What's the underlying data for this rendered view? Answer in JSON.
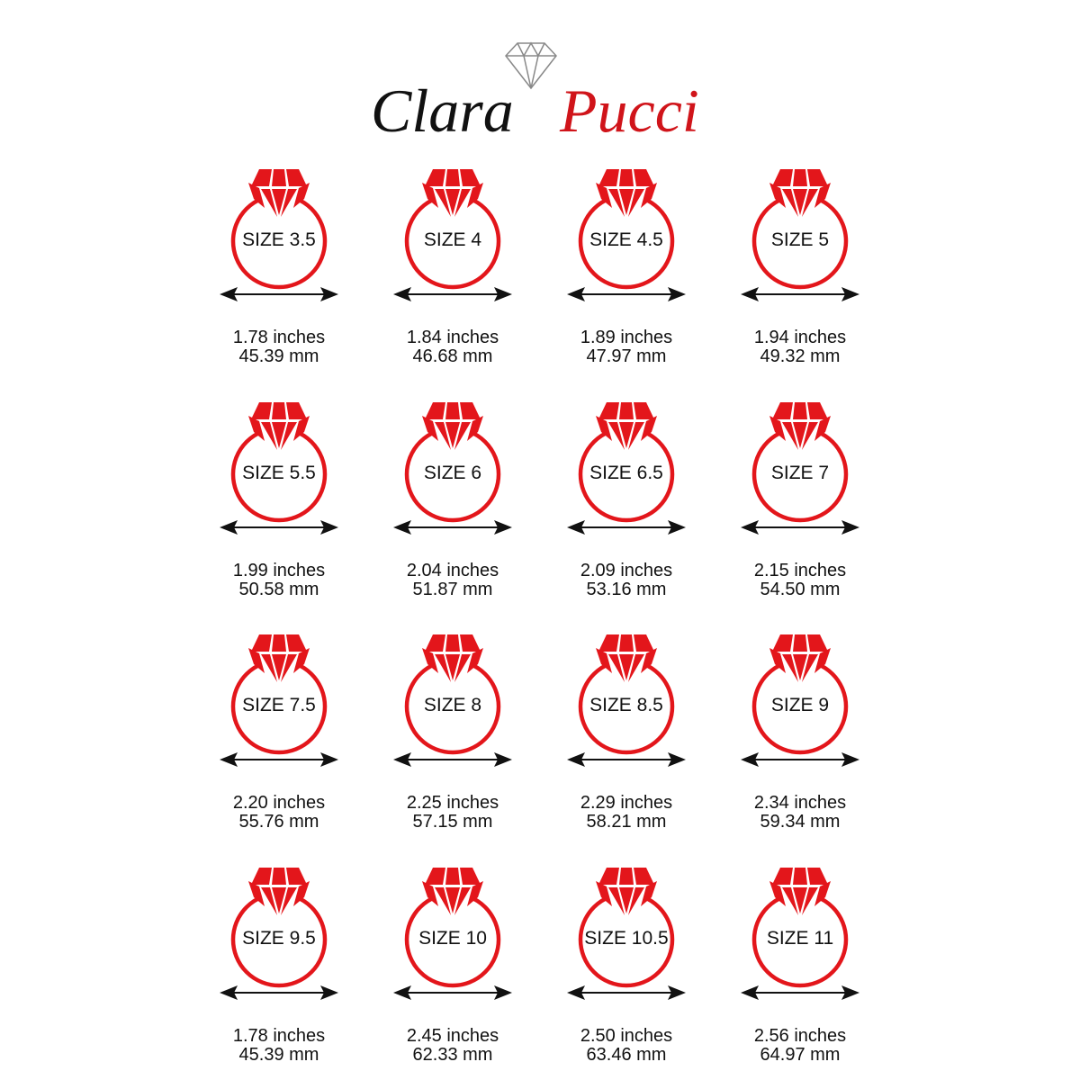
{
  "brand": {
    "first": "Clara",
    "second": "Pucci",
    "first_color": "#111111",
    "second_color": "#d0141a",
    "icon": "diamond-outline-icon"
  },
  "colors": {
    "ring": "#e3161b",
    "arrow": "#111111"
  },
  "sizes": [
    {
      "label": "SIZE 3.5",
      "inches": "1.78 inches",
      "mm": "45.39 mm"
    },
    {
      "label": "SIZE 4",
      "inches": "1.84 inches",
      "mm": "46.68 mm"
    },
    {
      "label": "SIZE 4.5",
      "inches": "1.89 inches",
      "mm": "47.97 mm"
    },
    {
      "label": "SIZE 5",
      "inches": "1.94 inches",
      "mm": "49.32 mm"
    },
    {
      "label": "SIZE 5.5",
      "inches": "1.99 inches",
      "mm": "50.58 mm"
    },
    {
      "label": "SIZE 6",
      "inches": "2.04 inches",
      "mm": "51.87 mm"
    },
    {
      "label": "SIZE 6.5",
      "inches": "2.09 inches",
      "mm": "53.16 mm"
    },
    {
      "label": "SIZE 7",
      "inches": "2.15 inches",
      "mm": "54.50 mm"
    },
    {
      "label": "SIZE 7.5",
      "inches": "2.20 inches",
      "mm": "55.76 mm"
    },
    {
      "label": "SIZE 8",
      "inches": "2.25 inches",
      "mm": "57.15 mm"
    },
    {
      "label": "SIZE 8.5",
      "inches": "2.29 inches",
      "mm": "58.21 mm"
    },
    {
      "label": "SIZE 9",
      "inches": "2.34 inches",
      "mm": "59.34 mm"
    },
    {
      "label": "SIZE 9.5",
      "inches": "1.78 inches",
      "mm": "45.39 mm"
    },
    {
      "label": "SIZE 10",
      "inches": "2.45 inches",
      "mm": "62.33 mm"
    },
    {
      "label": "SIZE 10.5",
      "inches": "2.50 inches",
      "mm": "63.46 mm"
    },
    {
      "label": "SIZE 11",
      "inches": "2.56 inches",
      "mm": "64.97 mm"
    }
  ]
}
